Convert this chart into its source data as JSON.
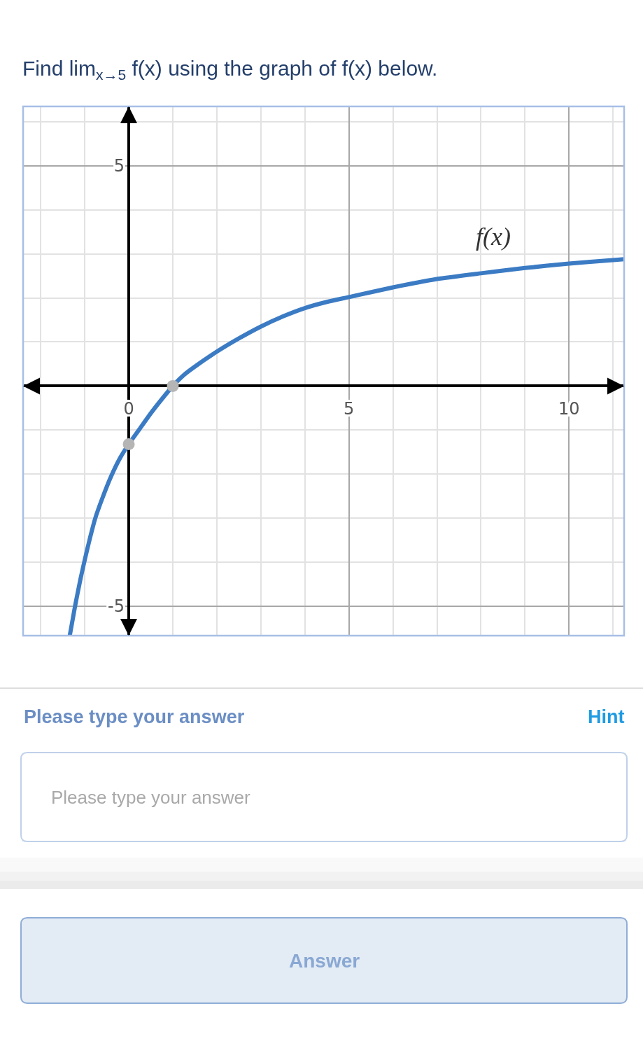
{
  "chart_data": {
    "type": "line",
    "title": "Find lim$_{x→5}$ f(x) using the graph of f(x) below.",
    "xlim": [
      -2.4,
      11.25
    ],
    "ylim": [
      -5.67,
      6.35
    ],
    "xticks": [
      {
        "value": -2,
        "label": null
      },
      {
        "value": -1,
        "label": null
      },
      0,
      {
        "value": 1,
        "label": null
      },
      {
        "value": 2,
        "label": null
      },
      {
        "value": 3,
        "label": null
      },
      {
        "value": 4,
        "label": null
      },
      5,
      {
        "value": 6,
        "label": null
      },
      {
        "value": 7,
        "label": null
      },
      {
        "value": 8,
        "label": null
      },
      {
        "value": 9,
        "label": null
      },
      10,
      {
        "value": 11,
        "label": null
      }
    ],
    "yticks": [
      -5,
      {
        "value": -4,
        "label": null
      },
      {
        "value": -3,
        "label": null
      },
      {
        "value": -2,
        "label": null
      },
      {
        "value": -1,
        "label": null
      },
      {
        "value": 1,
        "label": null
      },
      {
        "value": 2,
        "label": null
      },
      {
        "value": 3,
        "label": null
      },
      {
        "value": 4,
        "label": null
      },
      5,
      {
        "value": 6,
        "label": null
      }
    ],
    "grid": true,
    "line_style": "solid",
    "series": [
      {
        "name": "f(x)",
        "color": "#3b7bc4",
        "x": [
          -1.34,
          -1.22,
          -1.1,
          -1.0,
          -0.88,
          -0.76,
          -0.6,
          -0.4,
          -0.2,
          0,
          0.25,
          0.5,
          0.75,
          1.0,
          1.25,
          1.5,
          2.0,
          2.5,
          3.0,
          3.5,
          4.0,
          4.5,
          5.0,
          6.0,
          7.0,
          8.0,
          9.0,
          10.0,
          11.0,
          11.25
        ],
        "values": [
          -5.67,
          -5.0,
          -4.4,
          -3.95,
          -3.45,
          -3.0,
          -2.55,
          -2.05,
          -1.64,
          -1.32,
          -0.97,
          -0.62,
          -0.3,
          0,
          0.25,
          0.44,
          0.78,
          1.08,
          1.35,
          1.58,
          1.77,
          1.91,
          2.02,
          2.24,
          2.43,
          2.56,
          2.68,
          2.78,
          2.86,
          2.88
        ]
      },
      {
        "type": "scatter",
        "marker": "circle",
        "color": "#b5b5b5",
        "x": [
          0,
          1
        ],
        "values": [
          -1.32,
          0
        ]
      }
    ],
    "annotations": [
      "Please type your answer",
      "Hint",
      "Please type your answer",
      "Answer"
    ]
  }
}
